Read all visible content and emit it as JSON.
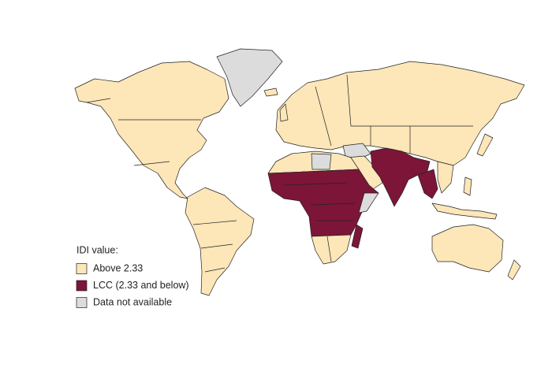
{
  "legend": {
    "title": "IDI value:",
    "items": [
      {
        "label": "Above 2.33",
        "color": "#fde6b8"
      },
      {
        "label": "LCC (2.33 and below)",
        "color": "#7d1538"
      },
      {
        "label": "Data not available",
        "color": "#dcdcdc"
      }
    ]
  }
}
